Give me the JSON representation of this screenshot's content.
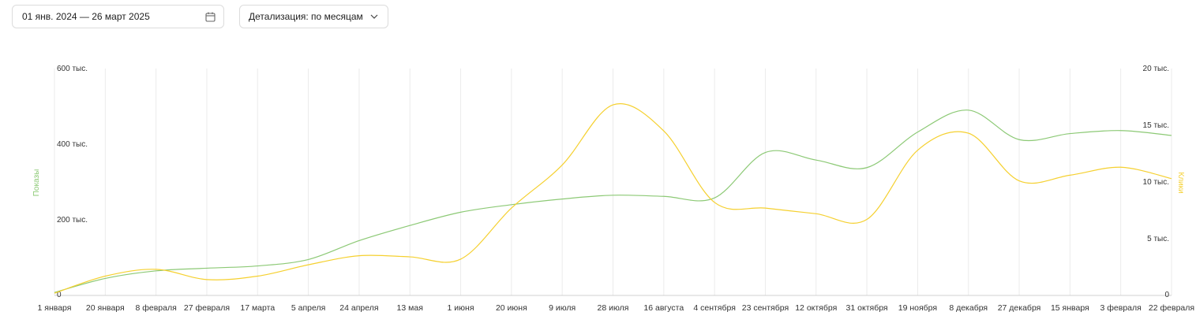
{
  "toolbar": {
    "date_range": "01 янв. 2024 — 26 март 2025",
    "detail_label": "Детализация: по месяцам"
  },
  "colors": {
    "impressions": "#8cc975",
    "clicks": "#f5d02f",
    "grid": "#ebebeb"
  },
  "chart_data": {
    "type": "line",
    "x": [
      "1 января",
      "20 января",
      "8 февраля",
      "27 февраля",
      "17 марта",
      "5 апреля",
      "24 апреля",
      "13 мая",
      "1 июня",
      "20 июня",
      "9 июля",
      "28 июля",
      "16 августа",
      "4 сентября",
      "23 сентября",
      "12 октября",
      "31 октября",
      "19 ноября",
      "8 декабря",
      "27 декабря",
      "15 января",
      "3 февраля",
      "22 февраля"
    ],
    "y_left": {
      "label": "Показы",
      "ylim": [
        0,
        600000
      ],
      "ticks": [
        "0",
        "200 тыс.",
        "400 тыс.",
        "600 тыс."
      ]
    },
    "y_right": {
      "label": "Клики",
      "ylim": [
        0,
        20000
      ],
      "ticks": [
        "0",
        "5 тыс.",
        "10 тыс.",
        "15 тыс.",
        "20 тыс."
      ]
    },
    "grid": true,
    "series": [
      {
        "name": "Показы",
        "axis": "left",
        "points": [
          [
            "1 января",
            8000
          ],
          [
            "20 января",
            45000
          ],
          [
            "8 февраля",
            65000
          ],
          [
            "27 февраля",
            72000
          ],
          [
            "17 марта",
            78000
          ],
          [
            "5 апреля",
            95000
          ],
          [
            "24 апреля",
            145000
          ],
          [
            "13 мая",
            185000
          ],
          [
            "1 июня",
            220000
          ],
          [
            "20 июня",
            240000
          ],
          [
            "9 июля",
            255000
          ],
          [
            "28 июля",
            265000
          ],
          [
            "16 августа",
            262000
          ],
          [
            "4 сентября",
            258000
          ],
          [
            "23 сентября",
            378000
          ],
          [
            "12 октября",
            358000
          ],
          [
            "31 октября",
            338000
          ],
          [
            "19 ноября",
            432000
          ],
          [
            "8 декабря",
            490000
          ],
          [
            "27 декабря",
            412000
          ],
          [
            "15 января",
            428000
          ],
          [
            "3 февраля",
            436000
          ],
          [
            "22 февраля",
            423000
          ]
        ]
      },
      {
        "name": "Клики",
        "axis": "right",
        "points": [
          [
            "1 января",
            200
          ],
          [
            "20 января",
            1700
          ],
          [
            "8 февраля",
            2300
          ],
          [
            "27 февраля",
            1400
          ],
          [
            "17 марта",
            1700
          ],
          [
            "5 апреля",
            2700
          ],
          [
            "24 апреля",
            3500
          ],
          [
            "13 мая",
            3400
          ],
          [
            "1 июня",
            3200
          ],
          [
            "20 июня",
            7700
          ],
          [
            "9 июля",
            11500
          ],
          [
            "28 июля",
            16800
          ],
          [
            "16 августа",
            14500
          ],
          [
            "4 сентября",
            8200
          ],
          [
            "23 сентября",
            7700
          ],
          [
            "12 октября",
            7200
          ],
          [
            "31 октября",
            6700
          ],
          [
            "19 ноября",
            12800
          ],
          [
            "8 декабря",
            14300
          ],
          [
            "27 декабря",
            10100
          ],
          [
            "15 января",
            10600
          ],
          [
            "3 февраля",
            11300
          ],
          [
            "22 февраля",
            10300
          ]
        ]
      }
    ]
  }
}
